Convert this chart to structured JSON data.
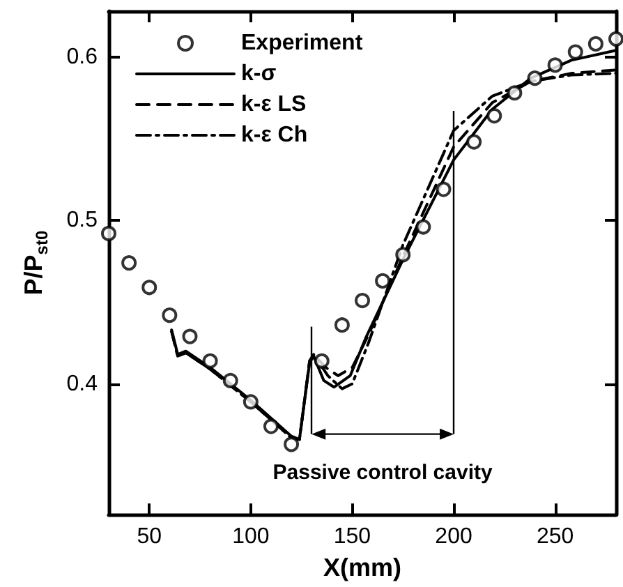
{
  "chart_data": {
    "type": "line",
    "xlabel": "X(mm)",
    "ylabel": "P/P$_{st0}$",
    "xlim": [
      30,
      280
    ],
    "xticks": [
      50,
      100,
      150,
      200,
      250
    ],
    "ylim": [
      0.32,
      0.628
    ],
    "yticks": [
      0.4,
      0.5,
      0.6
    ],
    "legend": "top left",
    "grid": false,
    "ref_lines": [
      {
        "axis": "x",
        "value": 130
      },
      {
        "axis": "x",
        "value": 200
      }
    ],
    "annotations": [
      "Passive control cavity"
    ],
    "series": [
      {
        "name": "Experiment",
        "type": "scatter",
        "marker": "circle",
        "color": "#000000",
        "x": [
          30,
          40,
          50,
          60,
          70,
          80,
          90,
          100,
          110,
          120,
          135,
          145,
          155,
          165,
          175,
          185,
          195,
          210,
          220,
          230,
          240,
          250,
          260,
          270,
          280
        ],
        "values": [
          0.492,
          0.474,
          0.459,
          0.442,
          0.429,
          0.414,
          0.402,
          0.389,
          0.374,
          0.363,
          0.414,
          0.436,
          0.451,
          0.463,
          0.479,
          0.496,
          0.519,
          0.548,
          0.564,
          0.578,
          0.587,
          0.595,
          0.603,
          0.608,
          0.611
        ]
      },
      {
        "name": "k-σ",
        "type": "line",
        "line_style": "solid",
        "marker": "none",
        "color": "#000000",
        "x": [
          61,
          64,
          68,
          80,
          100,
          120,
          124,
          129,
          131,
          136,
          141,
          149,
          157,
          175,
          200,
          219,
          238,
          258,
          280
        ],
        "values": [
          0.433,
          0.418,
          0.42,
          0.41,
          0.39,
          0.368,
          0.366,
          0.413,
          0.417,
          0.402,
          0.398,
          0.405,
          0.429,
          0.476,
          0.537,
          0.568,
          0.587,
          0.598,
          0.604
        ]
      },
      {
        "name": "k-ε LS",
        "type": "line",
        "line_style": "dashed",
        "marker": "none",
        "color": "#000000",
        "x": [
          61,
          64,
          68,
          80,
          100,
          120,
          124,
          129,
          131,
          137,
          143,
          150,
          158,
          175,
          200,
          219,
          238,
          258,
          280
        ],
        "values": [
          0.432,
          0.417,
          0.419,
          0.409,
          0.389,
          0.367,
          0.366,
          0.414,
          0.418,
          0.41,
          0.405,
          0.41,
          0.43,
          0.478,
          0.545,
          0.572,
          0.585,
          0.59,
          0.592
        ]
      },
      {
        "name": "k-ε Ch",
        "type": "line",
        "line_style": "dashdot",
        "marker": "none",
        "color": "#000000",
        "x": [
          61,
          64,
          68,
          80,
          100,
          120,
          124,
          129,
          131,
          138,
          145,
          150,
          158,
          175,
          200,
          219,
          238,
          258,
          280
        ],
        "values": [
          0.432,
          0.417,
          0.419,
          0.409,
          0.389,
          0.367,
          0.366,
          0.414,
          0.418,
          0.405,
          0.397,
          0.4,
          0.425,
          0.485,
          0.555,
          0.576,
          0.585,
          0.589,
          0.59
        ]
      }
    ]
  }
}
